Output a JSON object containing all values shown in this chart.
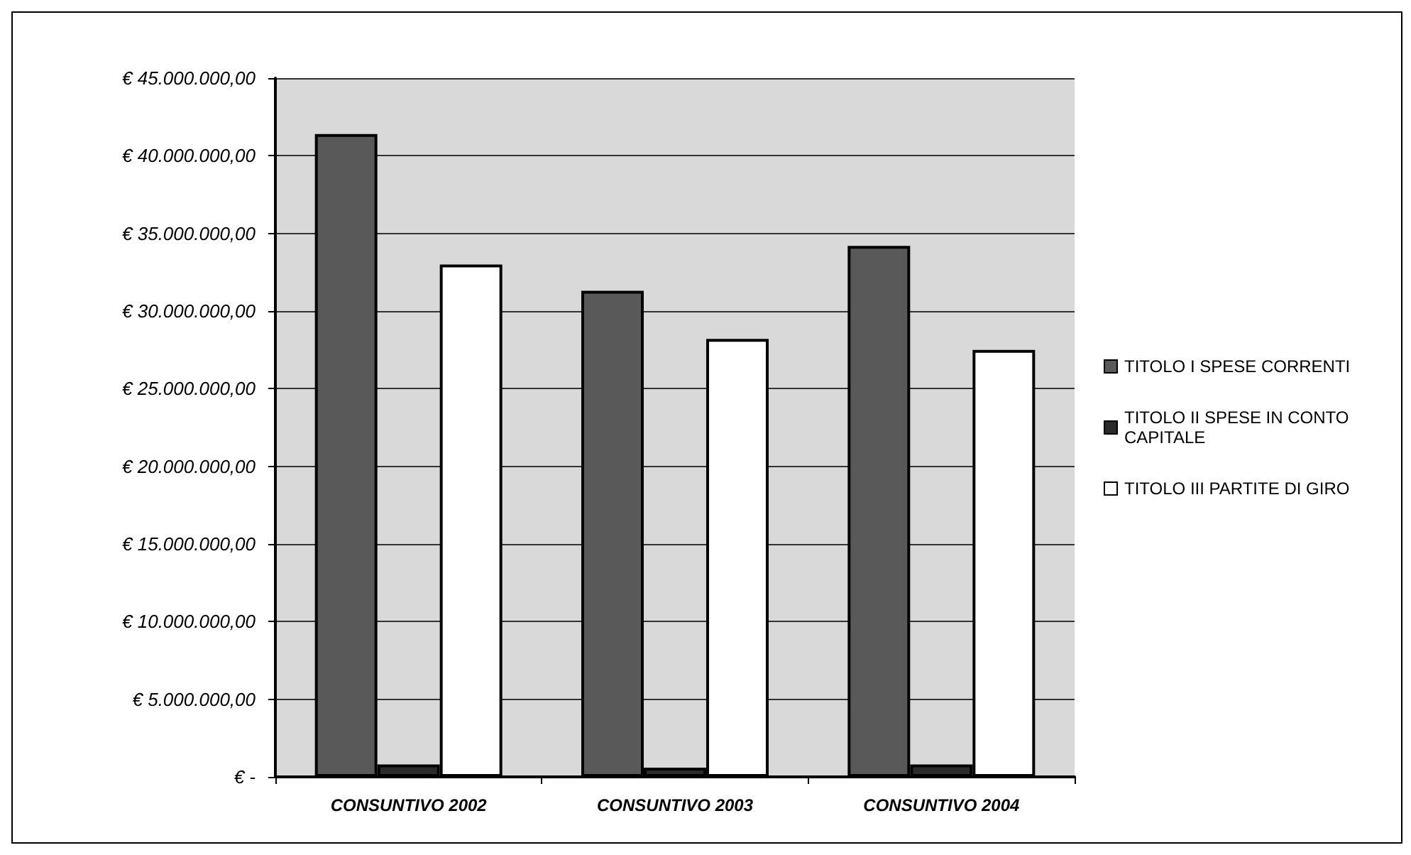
{
  "chart_data": {
    "type": "bar",
    "categories": [
      "CONSUNTIVO 2002",
      "CONSUNTIVO 2003",
      "CONSUNTIVO 2004"
    ],
    "series": [
      {
        "name": "TITOLO I SPESE CORRENTI",
        "color": "#595959",
        "values": [
          41400000,
          31300000,
          34200000
        ]
      },
      {
        "name": "TITOLO II SPESE IN CONTO CAPITALE",
        "color": "#2b2b2b",
        "values": [
          800000,
          600000,
          800000
        ]
      },
      {
        "name": "TITOLO III PARTITE DI GIRO",
        "color": "#ffffff",
        "values": [
          33000000,
          28200000,
          27500000
        ]
      }
    ],
    "ylim": [
      0,
      45000000
    ],
    "yticks": [
      {
        "value": 0,
        "label": "€ -"
      },
      {
        "value": 5000000,
        "label": "€ 5.000.000,00"
      },
      {
        "value": 10000000,
        "label": "€ 10.000.000,00"
      },
      {
        "value": 15000000,
        "label": "€ 15.000.000,00"
      },
      {
        "value": 20000000,
        "label": "€ 20.000.000,00"
      },
      {
        "value": 25000000,
        "label": "€ 25.000.000,00"
      },
      {
        "value": 30000000,
        "label": "€ 30.000.000,00"
      },
      {
        "value": 35000000,
        "label": "€ 35.000.000,00"
      },
      {
        "value": 40000000,
        "label": "€ 40.000.000,00"
      },
      {
        "value": 45000000,
        "label": "€ 45.000.000,00"
      }
    ],
    "grid": "y",
    "legend": "right"
  }
}
